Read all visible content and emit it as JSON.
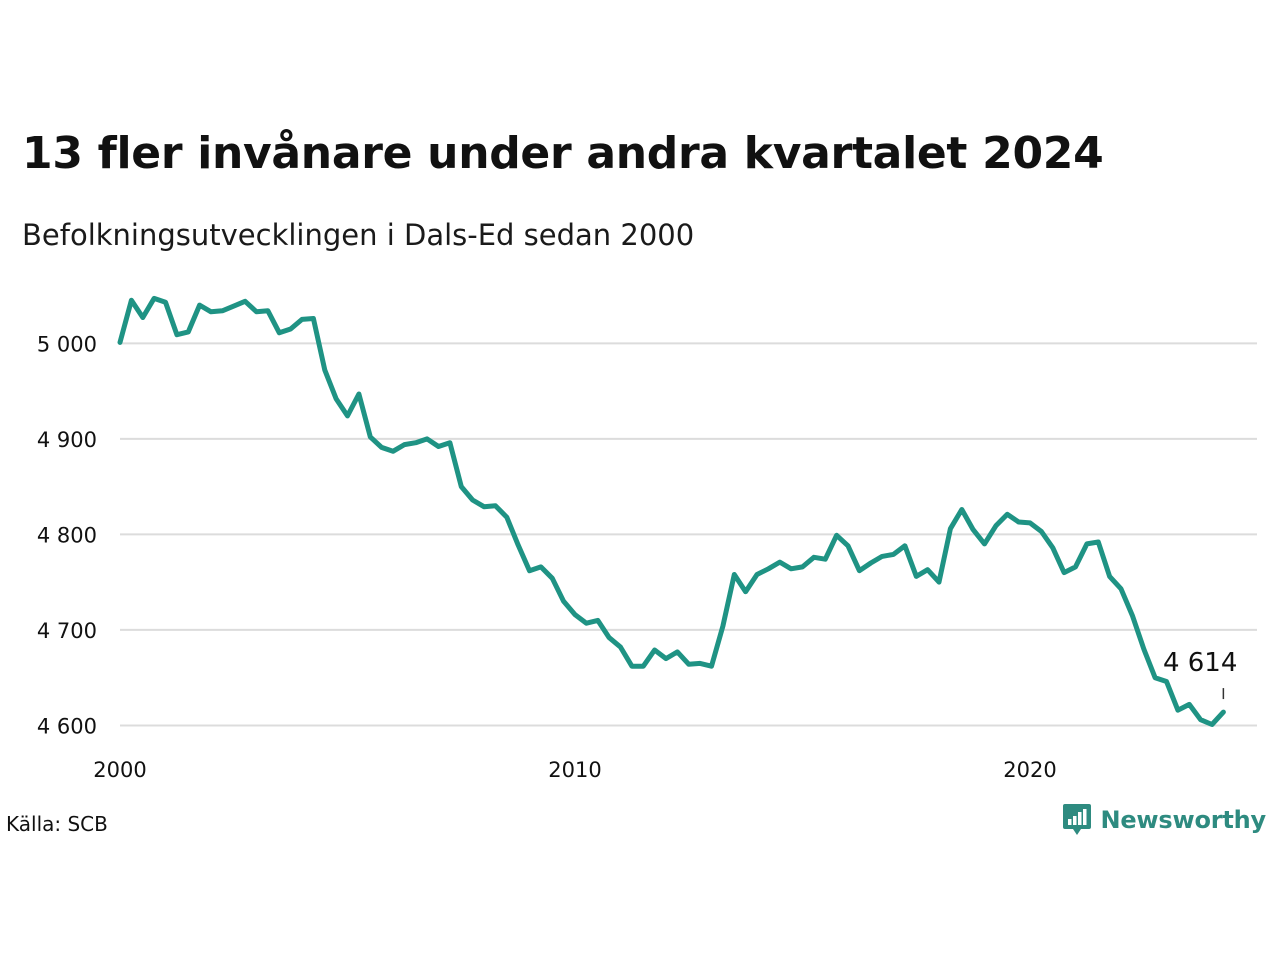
{
  "title": "13 fler invånare under andra kvartalet 2024",
  "subtitle": "Befolkningsutvecklingen i Dals-Ed sedan 2000",
  "source": "Källa: SCB",
  "brand": {
    "name": "Newsworthy",
    "icon": "newsworthy-logo-icon"
  },
  "colors": {
    "line": "#1f9384",
    "grid": "#dcdcdc",
    "brand": "#2e8b80"
  },
  "chart_data": {
    "type": "line",
    "frequency": "quarterly",
    "x_start": 2000,
    "ylim": [
      4590,
      5060
    ],
    "y_ticks": [
      4600,
      4700,
      4800,
      4900,
      5000
    ],
    "y_tick_labels": [
      "4 600",
      "4 700",
      "4 800",
      "4 900",
      "5 000"
    ],
    "x_ticks": [
      2000,
      2010,
      2020
    ],
    "x_tick_labels": [
      "2000",
      "2010",
      "2020"
    ],
    "grid": "horizontal",
    "series": [
      {
        "values": [
          5001,
          5045,
          5027,
          5047,
          5043,
          5009,
          5012,
          5040,
          5033,
          5034,
          5039,
          5044,
          5033,
          5034,
          5011,
          5015,
          5025,
          5026,
          4972,
          4942,
          4924,
          4947,
          4902,
          4891,
          4887,
          4894,
          4896,
          4900,
          4892,
          4896,
          4850,
          4836,
          4829,
          4830,
          4818,
          4789,
          4762,
          4766,
          4754,
          4730,
          4716,
          4707,
          4710,
          4692,
          4682,
          4662,
          4662,
          4679,
          4670,
          4677,
          4664,
          4665,
          4662,
          4704,
          4758,
          4740,
          4758,
          4764,
          4771,
          4764,
          4766,
          4776,
          4774,
          4799,
          4788,
          4762,
          4770,
          4777,
          4779,
          4788,
          4756,
          4763,
          4750,
          4806,
          4826,
          4805,
          4790,
          4809,
          4821,
          4813,
          4812,
          4803,
          4786,
          4760,
          4766,
          4790,
          4792,
          4756,
          4743,
          4715,
          4680,
          4650,
          4646,
          4616,
          4622,
          4606,
          4601,
          4614
        ]
      }
    ],
    "last_value_label": "4 614"
  }
}
